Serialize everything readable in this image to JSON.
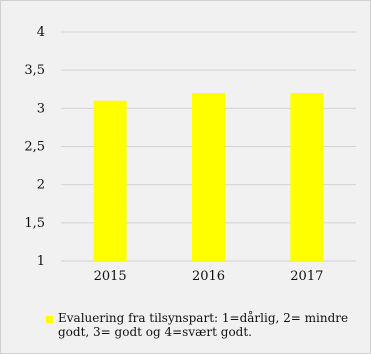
{
  "chart_data": {
    "type": "bar",
    "categories": [
      "2015",
      "2016",
      "2017"
    ],
    "series": [
      {
        "name": "Evaluering fra tilsynspart: 1=dårlig, 2= mindre godt, 3= godt og 4=svært godt.",
        "values": [
          3.1,
          3.2,
          3.2
        ],
        "color": "#ffff00"
      }
    ],
    "ylim": [
      1,
      4
    ],
    "yticks": [
      "1",
      "1,5",
      "2",
      "2,5",
      "3",
      "3,5",
      "4"
    ],
    "grid": true,
    "legend_position": "bottom"
  }
}
